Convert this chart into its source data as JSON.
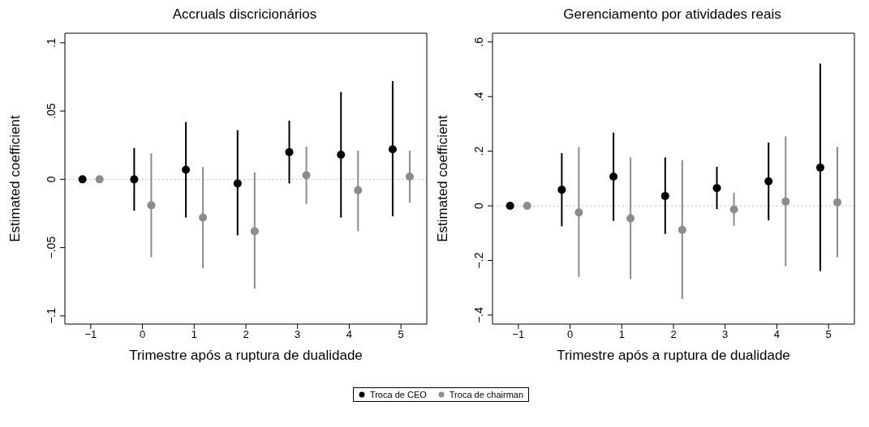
{
  "chart_data": [
    {
      "type": "scatter",
      "title": "Accruals discricionários",
      "xlabel": "Trimestre após a ruptura de dualidade",
      "ylabel": "Estimated coefficient",
      "xlim": [
        -1.5,
        5.5
      ],
      "xticks": [
        {
          "value": -1,
          "label": "−1"
        },
        0,
        1,
        2,
        3,
        4,
        5
      ],
      "ylim": [
        -0.106,
        0.107
      ],
      "yticks": [
        {
          "value": -0.1,
          "label": "−.1"
        },
        {
          "value": -0.05,
          "label": "−.05"
        },
        0,
        {
          "value": 0.05,
          "label": ".05"
        },
        {
          "value": 0.1,
          "label": ".1"
        }
      ],
      "marker": "circle",
      "legend": "bottom",
      "grid": false,
      "ref_lines": [
        {
          "axis": "y",
          "value": 0,
          "color": "#c0c0c0",
          "line_style": "dotted"
        }
      ],
      "series": [
        {
          "name": "Troca de CEO",
          "color": "#000000",
          "x": [
            -1.16,
            -0.16,
            0.84,
            1.84,
            2.84,
            3.84,
            4.84
          ],
          "values": [
            0,
            0,
            0.007,
            -0.003,
            0.02,
            0.018,
            0.022
          ],
          "errors": [
            null,
            [
              -0.023,
              0.023
            ],
            [
              -0.028,
              0.042
            ],
            [
              -0.041,
              0.036
            ],
            [
              -0.003,
              0.043
            ],
            [
              -0.028,
              0.064
            ],
            [
              -0.027,
              0.072
            ]
          ]
        },
        {
          "name": "Troca de chairman",
          "color": "#8c8c8c",
          "x": [
            -0.83,
            0.17,
            1.17,
            2.17,
            3.17,
            4.17,
            5.17
          ],
          "values": [
            0,
            -0.019,
            -0.028,
            -0.038,
            0.003,
            -0.008,
            0.002
          ],
          "errors": [
            null,
            [
              -0.057,
              0.019
            ],
            [
              -0.065,
              0.009
            ],
            [
              -0.08,
              0.005
            ],
            [
              -0.018,
              0.024
            ],
            [
              -0.038,
              0.021
            ],
            [
              -0.017,
              0.021
            ]
          ]
        }
      ]
    },
    {
      "type": "scatter",
      "title": "Gerenciamento por atividades reais",
      "xlabel": "Trimestre após a ruptura de dualidade",
      "ylabel": "Estimated coefficient",
      "xlim": [
        -1.5,
        5.5
      ],
      "xticks": [
        {
          "value": -1,
          "label": "−1"
        },
        0,
        1,
        2,
        3,
        4,
        5
      ],
      "ylim": [
        -0.433,
        0.632
      ],
      "yticks": [
        {
          "value": -0.4,
          "label": "−.4"
        },
        {
          "value": -0.2,
          "label": "−.2"
        },
        0,
        {
          "value": 0.2,
          "label": ".2"
        },
        {
          "value": 0.4,
          "label": ".4"
        },
        {
          "value": 0.6,
          "label": ".6"
        }
      ],
      "marker": "circle",
      "legend": "bottom",
      "grid": false,
      "ref_lines": [
        {
          "axis": "y",
          "value": 0,
          "color": "#c0c0c0",
          "line_style": "dotted"
        }
      ],
      "series": [
        {
          "name": "Troca de CEO",
          "color": "#000000",
          "x": [
            -1.16,
            -0.16,
            0.84,
            1.84,
            2.84,
            3.84,
            4.84
          ],
          "values": [
            0,
            0.059,
            0.107,
            0.036,
            0.065,
            0.09,
            0.14
          ],
          "errors": [
            null,
            [
              -0.075,
              0.193
            ],
            [
              -0.055,
              0.268
            ],
            [
              -0.103,
              0.177
            ],
            [
              -0.012,
              0.143
            ],
            [
              -0.053,
              0.232
            ],
            [
              -0.239,
              0.521
            ]
          ]
        },
        {
          "name": "Troca de chairman",
          "color": "#8c8c8c",
          "x": [
            -0.83,
            0.17,
            1.17,
            2.17,
            3.17,
            4.17,
            5.17
          ],
          "values": [
            0,
            -0.024,
            -0.046,
            -0.088,
            -0.013,
            0.016,
            0.013
          ],
          "errors": [
            null,
            [
              -0.26,
              0.215
            ],
            [
              -0.268,
              0.177
            ],
            [
              -0.341,
              0.167
            ],
            [
              -0.073,
              0.048
            ],
            [
              -0.221,
              0.254
            ],
            [
              -0.188,
              0.216
            ]
          ]
        }
      ]
    }
  ]
}
